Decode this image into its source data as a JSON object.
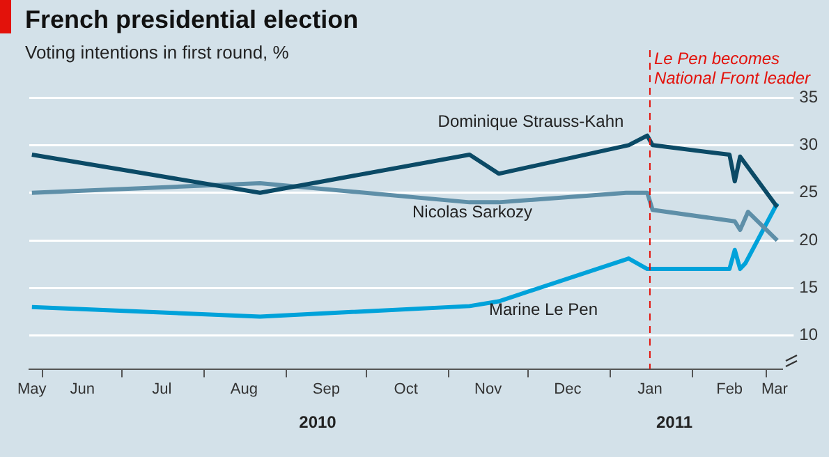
{
  "chart_data": {
    "type": "line",
    "title": "French presidential election",
    "subtitle": "Voting intentions in first round, %",
    "series": [
      {
        "name": "Dominique Strauss-Kahn",
        "color": "#0b4a66",
        "x": [
          "2010-05-28",
          "2010-08-22",
          "2010-11-09",
          "2010-11-20",
          "2011-01-08",
          "2011-01-15",
          "2011-01-17",
          "2011-02-15",
          "2011-02-17",
          "2011-02-19",
          "2011-03-05"
        ],
        "values": [
          29,
          25,
          29,
          27,
          30,
          31,
          30,
          29,
          26.2,
          28.8,
          23.5
        ]
      },
      {
        "name": "Nicolas Sarkozy",
        "color": "#5e8fa8",
        "x": [
          "2010-05-28",
          "2010-08-22",
          "2010-11-09",
          "2010-11-20",
          "2011-01-07",
          "2011-01-15",
          "2011-01-17",
          "2011-02-17",
          "2011-02-19",
          "2011-02-22",
          "2011-03-05"
        ],
        "values": [
          25,
          26,
          24,
          24,
          25,
          25,
          23.2,
          22,
          21.1,
          23,
          20
        ]
      },
      {
        "name": "Marine Le Pen",
        "color": "#00a2da",
        "x": [
          "2010-05-28",
          "2010-08-22",
          "2010-11-09",
          "2010-11-20",
          "2011-01-08",
          "2011-01-15",
          "2011-02-15",
          "2011-02-17",
          "2011-02-19",
          "2011-02-21",
          "2011-03-05"
        ],
        "values": [
          13,
          12,
          13.1,
          13.6,
          18.1,
          17,
          17,
          19,
          17,
          17.6,
          23.9
        ]
      }
    ],
    "xlim": [
      "2010-05-27",
      "2011-03-07"
    ],
    "xticks": [
      {
        "value": "2010-05-28",
        "label": "May"
      },
      {
        "value": "2010-06-01",
        "label": null
      },
      {
        "value": "2010-06-16",
        "label": "Jun"
      },
      {
        "value": "2010-07-01",
        "label": null
      },
      {
        "value": "2010-07-16",
        "label": "Jul"
      },
      {
        "value": "2010-08-01",
        "label": null
      },
      {
        "value": "2010-08-16",
        "label": "Aug"
      },
      {
        "value": "2010-09-01",
        "label": null
      },
      {
        "value": "2010-09-16",
        "label": "Sep"
      },
      {
        "value": "2010-10-01",
        "label": null
      },
      {
        "value": "2010-10-16",
        "label": "Oct"
      },
      {
        "value": "2010-11-01",
        "label": null
      },
      {
        "value": "2010-11-16",
        "label": "Nov"
      },
      {
        "value": "2010-12-01",
        "label": null
      },
      {
        "value": "2010-12-16",
        "label": "Dec"
      },
      {
        "value": "2011-01-01",
        "label": null
      },
      {
        "value": "2011-01-16",
        "label": "Jan"
      },
      {
        "value": "2011-02-01",
        "label": null
      },
      {
        "value": "2011-02-15",
        "label": "Feb"
      },
      {
        "value": "2011-03-01",
        "label": null
      },
      {
        "value": "2011-03-04",
        "label": "Mar"
      }
    ],
    "ylim": [
      6.5,
      35
    ],
    "yticks": [
      10,
      15,
      20,
      25,
      30,
      35
    ],
    "grid": "y",
    "ref_lines": [
      {
        "axis": "x",
        "value": "2011-01-16",
        "label": "Le Pen becomes\nNational Front leader",
        "color": "#e3120b",
        "line_style": "dashed"
      }
    ],
    "annotations": [
      "2010",
      "2011"
    ]
  }
}
